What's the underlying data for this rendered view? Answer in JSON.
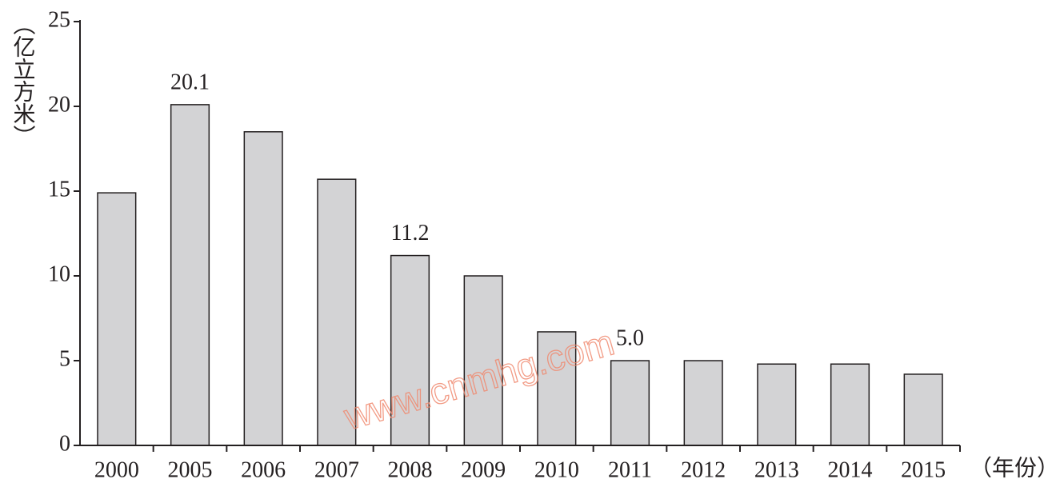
{
  "chart_data": {
    "type": "bar",
    "categories": [
      "2000",
      "2005",
      "2006",
      "2007",
      "2008",
      "2009",
      "2010",
      "2011",
      "2012",
      "2013",
      "2014",
      "2015"
    ],
    "values": [
      14.9,
      20.1,
      18.5,
      15.7,
      11.2,
      10.0,
      6.7,
      5.0,
      5.0,
      4.8,
      4.8,
      4.2
    ],
    "value_labels": [
      null,
      "20.1",
      null,
      null,
      "11.2",
      null,
      null,
      "5.0",
      null,
      null,
      null,
      null
    ],
    "color": "#d3d3d5",
    "y_label": "（亿立方米）",
    "x_label": "（年份）",
    "watermark": "www.cnmhg.com",
    "ylim": [
      0,
      25
    ],
    "yticks": [
      0,
      5,
      10,
      15,
      20,
      25
    ],
    "grid": false
  }
}
